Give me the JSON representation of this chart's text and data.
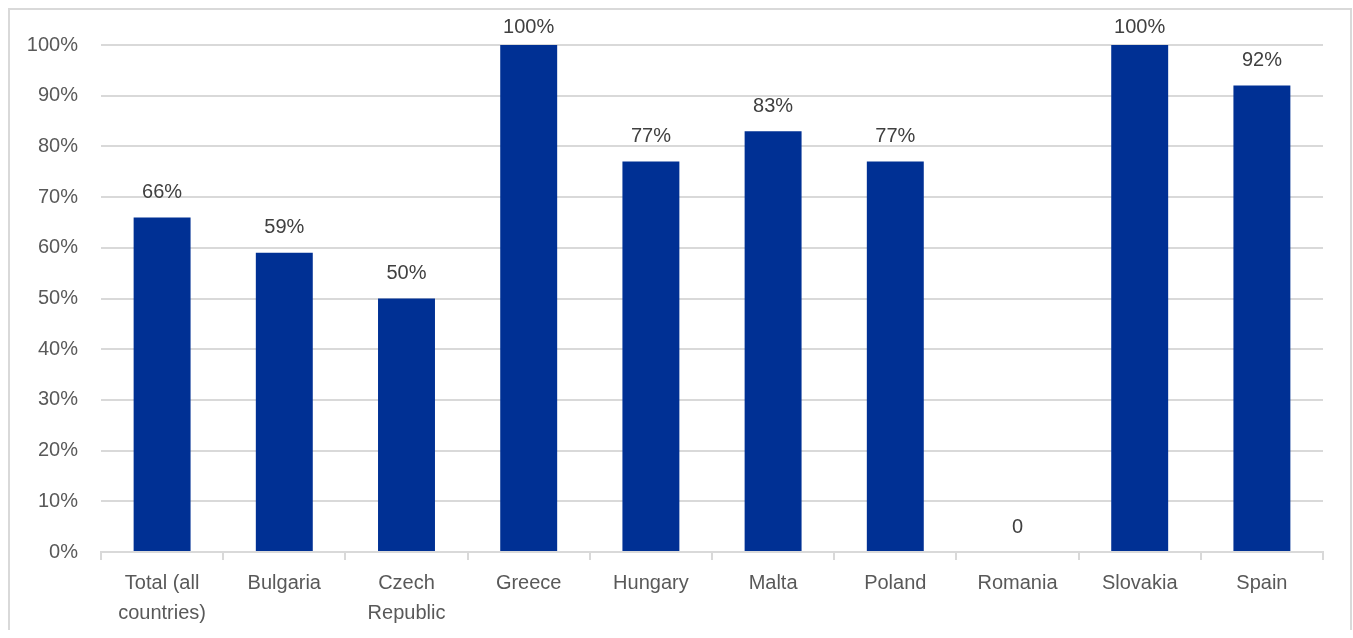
{
  "chart_data": {
    "type": "bar",
    "categories": [
      "Total (all countries)",
      "Bulgaria",
      "Czech Republic",
      "Greece",
      "Hungary",
      "Malta",
      "Poland",
      "Romania",
      "Slovakia",
      "Spain"
    ],
    "values": [
      66,
      59,
      50,
      100,
      77,
      83,
      77,
      0,
      100,
      92
    ],
    "value_labels": [
      "66%",
      "59%",
      "50%",
      "100%",
      "77%",
      "83%",
      "77%",
      "0",
      "100%",
      "92%"
    ],
    "color": "#003094",
    "ylim": [
      0,
      100
    ],
    "yticks": [
      {
        "value": 0,
        "label": "0%"
      },
      {
        "value": 10,
        "label": "10%"
      },
      {
        "value": 20,
        "label": "20%"
      },
      {
        "value": 30,
        "label": "30%"
      },
      {
        "value": 40,
        "label": "40%"
      },
      {
        "value": 50,
        "label": "50%"
      },
      {
        "value": 60,
        "label": "60%"
      },
      {
        "value": 70,
        "label": "70%"
      },
      {
        "value": 80,
        "label": "80%"
      },
      {
        "value": 90,
        "label": "90%"
      },
      {
        "value": 100,
        "label": "100%"
      }
    ],
    "grid": "y"
  }
}
